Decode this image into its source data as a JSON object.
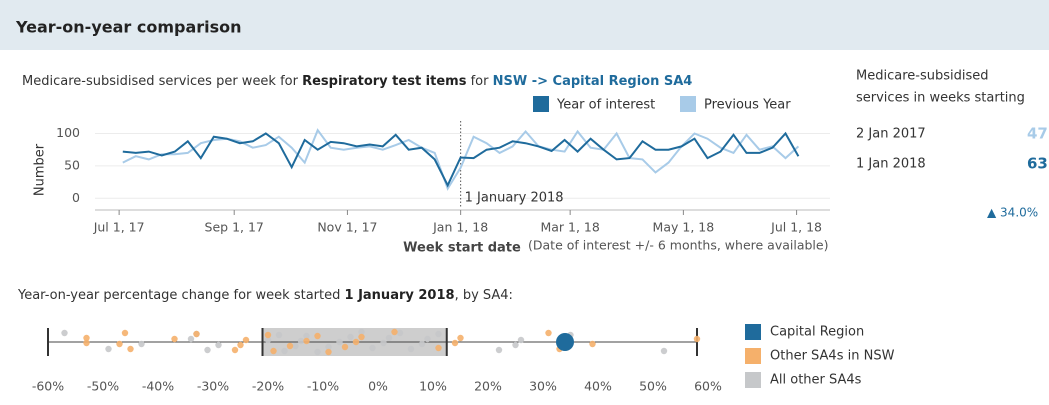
{
  "header": {
    "title": "Year-on-year comparison"
  },
  "summary": {
    "title_lines": [
      "Medicare-subsidised",
      "services in weeks starting"
    ],
    "items": [
      {
        "label": "2 Jan 2017",
        "value": 47
      },
      {
        "label": "1 Jan 2018",
        "value": 63
      }
    ],
    "change": "▲ 34.0%"
  },
  "chart_data": [
    {
      "type": "line",
      "title_parts": [
        "Medicare-subsidised services per week for ",
        "Respiratory test items",
        " for ",
        "NSW -> Capital Region SA4"
      ],
      "x_label": "Week start date",
      "x_note": "(Date of interest +/- 6 months, where available)",
      "y_label": "Number",
      "annotation": {
        "text": "1 January 2018",
        "x": "2018-01-01"
      },
      "x": [
        "2017-07-03",
        "2017-07-10",
        "2017-07-17",
        "2017-07-24",
        "2017-07-31",
        "2017-08-07",
        "2017-08-14",
        "2017-08-21",
        "2017-08-28",
        "2017-09-04",
        "2017-09-11",
        "2017-09-18",
        "2017-09-25",
        "2017-10-02",
        "2017-10-09",
        "2017-10-16",
        "2017-10-23",
        "2017-10-30",
        "2017-11-06",
        "2017-11-13",
        "2017-11-20",
        "2017-11-27",
        "2017-12-04",
        "2017-12-11",
        "2017-12-18",
        "2017-12-25",
        "2018-01-01",
        "2018-01-08",
        "2018-01-15",
        "2018-01-22",
        "2018-01-29",
        "2018-02-05",
        "2018-02-12",
        "2018-02-19",
        "2018-02-26",
        "2018-03-05",
        "2018-03-12",
        "2018-03-19",
        "2018-03-26",
        "2018-04-02",
        "2018-04-09",
        "2018-04-16",
        "2018-04-23",
        "2018-04-30",
        "2018-05-07",
        "2018-05-14",
        "2018-05-21",
        "2018-05-28",
        "2018-06-04",
        "2018-06-11",
        "2018-06-18",
        "2018-06-25",
        "2018-07-02"
      ],
      "series": [
        {
          "name": "Year of interest",
          "color": "#1f6b9c",
          "values": [
            72,
            70,
            72,
            66,
            72,
            88,
            62,
            95,
            92,
            85,
            88,
            100,
            85,
            48,
            90,
            75,
            87,
            85,
            80,
            83,
            80,
            98,
            75,
            78,
            60,
            20,
            63,
            62,
            75,
            78,
            88,
            85,
            80,
            73,
            90,
            72,
            92,
            75,
            60,
            62,
            88,
            75,
            75,
            80,
            92,
            62,
            72,
            98,
            70,
            70,
            78,
            100,
            65
          ]
        },
        {
          "name": "Previous Year",
          "color": "#a8cbe8",
          "values": [
            55,
            65,
            60,
            68,
            68,
            70,
            85,
            90,
            92,
            88,
            78,
            82,
            95,
            78,
            55,
            105,
            78,
            75,
            78,
            80,
            75,
            82,
            90,
            78,
            70,
            15,
            47,
            95,
            85,
            70,
            80,
            103,
            80,
            75,
            72,
            103,
            78,
            75,
            100,
            62,
            60,
            40,
            55,
            80,
            100,
            92,
            78,
            70,
            98,
            75,
            80,
            62,
            80
          ]
        }
      ],
      "xlim": [
        "2017-06-18",
        "2018-07-19"
      ],
      "xticks": [
        {
          "value": "2017-07-01",
          "label": "Jul 1, 17"
        },
        {
          "value": "2017-09-01",
          "label": "Sep 1, 17"
        },
        {
          "value": "2017-11-01",
          "label": "Nov 1, 17"
        },
        {
          "value": "2018-01-01",
          "label": "Jan 1, 18"
        },
        {
          "value": "2018-03-01",
          "label": "Mar 1, 18"
        },
        {
          "value": "2018-05-01",
          "label": "May 1, 18"
        },
        {
          "value": "2018-07-01",
          "label": "Jul 1, 18"
        }
      ],
      "ylim": [
        -15,
        110
      ],
      "yticks": [
        0,
        50,
        100
      ],
      "grid": true
    },
    {
      "type": "strip",
      "title_parts": [
        "Year-on-year percentage change for week started ",
        "1 January 2018",
        ", by SA4:"
      ],
      "box": {
        "min": -60,
        "q1": -21,
        "q3": 12.5,
        "max": 58
      },
      "series": [
        {
          "name": "Capital Region",
          "color": "#1f6b9c",
          "values": [
            34
          ]
        },
        {
          "name": "Other SA4s in NSW",
          "color": "#f5b06b",
          "values": [
            -53,
            -53,
            -46,
            -45,
            -47,
            -37,
            -33,
            -26,
            -25,
            -24,
            -20,
            -19,
            -16,
            -13,
            -11,
            -9,
            -6,
            -4,
            -3,
            3,
            11,
            14,
            15,
            31,
            33,
            39,
            58
          ]
        },
        {
          "name": "All other SA4s",
          "color": "#c6c8ca",
          "values": [
            -57,
            -49,
            -43,
            -34,
            -33,
            -31,
            -29,
            -20,
            -18,
            -17,
            -15,
            -14,
            -13,
            -11,
            -9,
            -7,
            -5,
            -3,
            -1,
            1,
            2,
            4,
            6,
            8,
            9,
            11,
            22,
            25,
            26,
            35,
            52
          ]
        }
      ],
      "xlim": [
        -62,
        62
      ],
      "xticks": [
        {
          "value": -60,
          "label": "-60%"
        },
        {
          "value": -50,
          "label": "-50%"
        },
        {
          "value": -40,
          "label": "-40%"
        },
        {
          "value": -30,
          "label": "-30%"
        },
        {
          "value": -20,
          "label": "-20%"
        },
        {
          "value": -10,
          "label": "-10%"
        },
        {
          "value": 0,
          "label": "0%"
        },
        {
          "value": 10,
          "label": "10%"
        },
        {
          "value": 20,
          "label": "20%"
        },
        {
          "value": 30,
          "label": "30%"
        },
        {
          "value": 40,
          "label": "40%"
        },
        {
          "value": 50,
          "label": "50%"
        },
        {
          "value": 60,
          "label": "60%"
        }
      ]
    }
  ]
}
